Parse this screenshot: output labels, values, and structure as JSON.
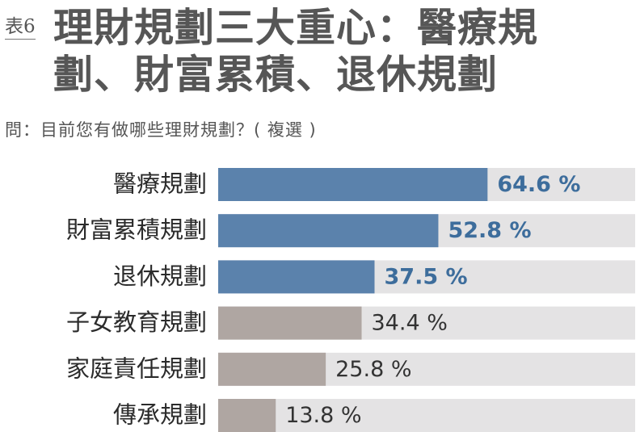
{
  "header": {
    "tag": "表6",
    "title_line1": "理財規劃三大重心：醫療規",
    "title_line2": "劃、財富累積、退休規劃",
    "subtitle": "問：目前您有做哪些理財規劃？( 複選 )"
  },
  "chart_data": {
    "type": "bar",
    "orientation": "horizontal",
    "categories": [
      "醫療規劃",
      "財富累積規劃",
      "退休規劃",
      "子女教育規劃",
      "家庭責任規劃",
      "傳承規劃"
    ],
    "values": [
      64.6,
      52.8,
      37.5,
      34.4,
      25.8,
      13.8
    ],
    "value_labels": [
      "64.6 %",
      "52.8 %",
      "37.5 %",
      "34.4 %",
      "25.8 %",
      "13.8 %"
    ],
    "highlighted": [
      true,
      true,
      true,
      false,
      false,
      false
    ],
    "xlim": [
      0,
      100
    ],
    "colors": {
      "highlight": "#5b82ac",
      "normal": "#afa6a2",
      "track": "#e4e3e4",
      "highlight_label": "#3d6d9c",
      "normal_label": "#333333",
      "category_label": "#2b2b2b"
    }
  }
}
